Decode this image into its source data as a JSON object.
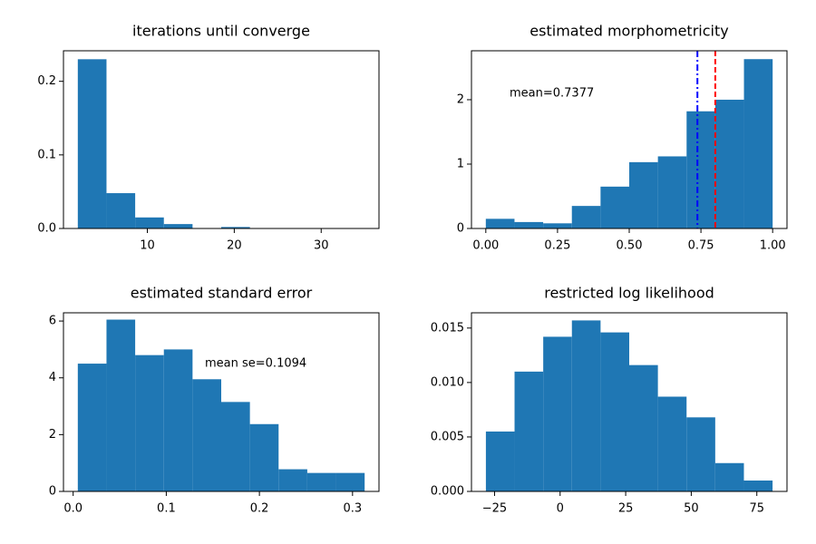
{
  "chart_data": [
    {
      "type": "histogram",
      "title": "iterations until converge",
      "color": "#1f77b4",
      "bins": [
        2,
        5.3,
        8.6,
        11.9,
        15.2,
        18.5,
        21.8,
        25.1,
        28.4,
        31.7,
        35
      ],
      "values": [
        0.23,
        0.048,
        0.015,
        0.006,
        0,
        0.002,
        0,
        0,
        0,
        0.0005
      ],
      "xlim": [
        0.35,
        36.65
      ],
      "xticks": [
        10,
        20,
        30
      ],
      "ylim": [
        0,
        0.2415
      ],
      "yticks": [
        {
          "value": 0,
          "label": "0.0"
        },
        0.1,
        0.2
      ]
    },
    {
      "type": "histogram",
      "title": "estimated morphometricity",
      "color": "#1f77b4",
      "bins": [
        0,
        0.1,
        0.2,
        0.3,
        0.4,
        0.5,
        0.6,
        0.7,
        0.8,
        0.9,
        1.0
      ],
      "values": [
        0.15,
        0.1,
        0.08,
        0.35,
        0.65,
        1.03,
        1.12,
        1.82,
        2.0,
        2.63
      ],
      "xlim": [
        -0.05,
        1.05
      ],
      "xticks": [
        {
          "value": 0,
          "label": "0.00"
        },
        {
          "value": 0.25,
          "label": "0.25"
        },
        {
          "value": 0.5,
          "label": "0.50"
        },
        {
          "value": 0.75,
          "label": "0.75"
        },
        {
          "value": 1,
          "label": "1.00"
        }
      ],
      "ylim": [
        0,
        2.76
      ],
      "yticks": [
        0,
        1,
        2
      ],
      "annotation": "mean=0.7377",
      "vlines": [
        {
          "x": 0.7377,
          "color": "#0000ff",
          "style": "dashdot"
        },
        {
          "x": 0.8,
          "color": "#ff0000",
          "style": "dashed"
        }
      ]
    },
    {
      "type": "histogram",
      "title": "estimated standard error",
      "color": "#1f77b4",
      "bins": [
        0.005,
        0.0358,
        0.0666,
        0.0974,
        0.1282,
        0.159,
        0.1898,
        0.2206,
        0.2514,
        0.2822,
        0.313
      ],
      "values": [
        4.5,
        6.05,
        4.8,
        5.0,
        3.95,
        3.15,
        2.37,
        0.78,
        0.65,
        0.65
      ],
      "xlim": [
        -0.0104,
        0.3284
      ],
      "xticks": [
        {
          "value": 0,
          "label": "0.0"
        },
        0.1,
        0.2,
        0.3
      ],
      "ylim": [
        0,
        6.29
      ],
      "yticks": [
        0,
        2,
        4,
        6
      ],
      "annotation": "mean se=0.1094"
    },
    {
      "type": "histogram",
      "title": "restricted log likelihood",
      "color": "#1f77b4",
      "bins": [
        -28.3,
        -17.37,
        -6.44,
        4.49,
        15.42,
        26.35,
        37.28,
        48.21,
        59.14,
        70.07,
        81
      ],
      "values": [
        0.0055,
        0.011,
        0.0142,
        0.0157,
        0.0146,
        0.0116,
        0.0087,
        0.0068,
        0.0026,
        0.001
      ],
      "xlim": [
        -33.8,
        86.5
      ],
      "xticks": [
        {
          "value": -25,
          "label": "−25"
        },
        0,
        25,
        50,
        75
      ],
      "ylim": [
        0,
        0.0164
      ],
      "yticks": [
        {
          "value": 0,
          "label": "0.000"
        },
        0.005,
        {
          "value": 0.01,
          "label": "0.010"
        },
        0.015
      ]
    }
  ]
}
